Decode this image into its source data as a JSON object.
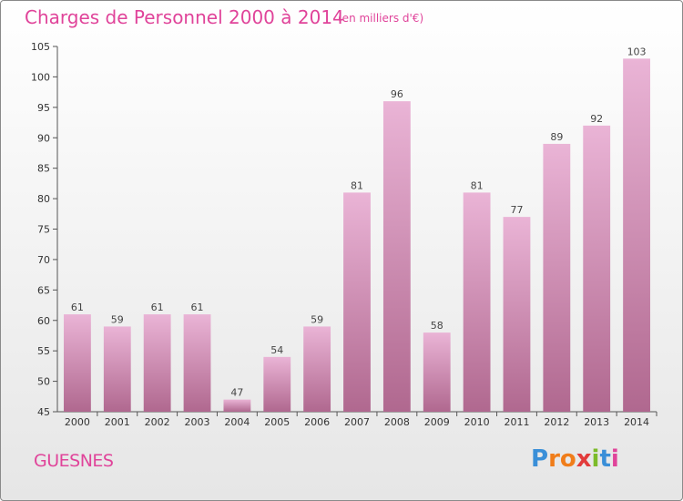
{
  "title": "Charges de Personnel 2000 à 2014",
  "subtitle": "(en milliers d'€)",
  "place": "GUESNES",
  "logo": {
    "letters": [
      "P",
      "r",
      "o",
      "x",
      "i",
      "t",
      "i"
    ],
    "colors": [
      "#3a8fd8",
      "#f07d1a",
      "#f07d1a",
      "#e23b3b",
      "#7cbb2a",
      "#3a8fd8",
      "#e0449a"
    ]
  },
  "colors": {
    "bar_light": "#eab4d6",
    "bar_dark": "#b0688f",
    "title": "#e0449a"
  },
  "chart_data": {
    "type": "bar",
    "categories": [
      "2000",
      "2001",
      "2002",
      "2003",
      "2004",
      "2005",
      "2006",
      "2007",
      "2008",
      "2009",
      "2010",
      "2011",
      "2012",
      "2013",
      "2014"
    ],
    "values": [
      61,
      59,
      61,
      61,
      47,
      54,
      59,
      81,
      96,
      58,
      81,
      77,
      89,
      92,
      103
    ],
    "ylim": [
      45,
      105
    ],
    "yticks": [
      45,
      50,
      55,
      60,
      65,
      70,
      75,
      80,
      85,
      90,
      95,
      100,
      105
    ],
    "grid": false,
    "data_labels": true
  }
}
